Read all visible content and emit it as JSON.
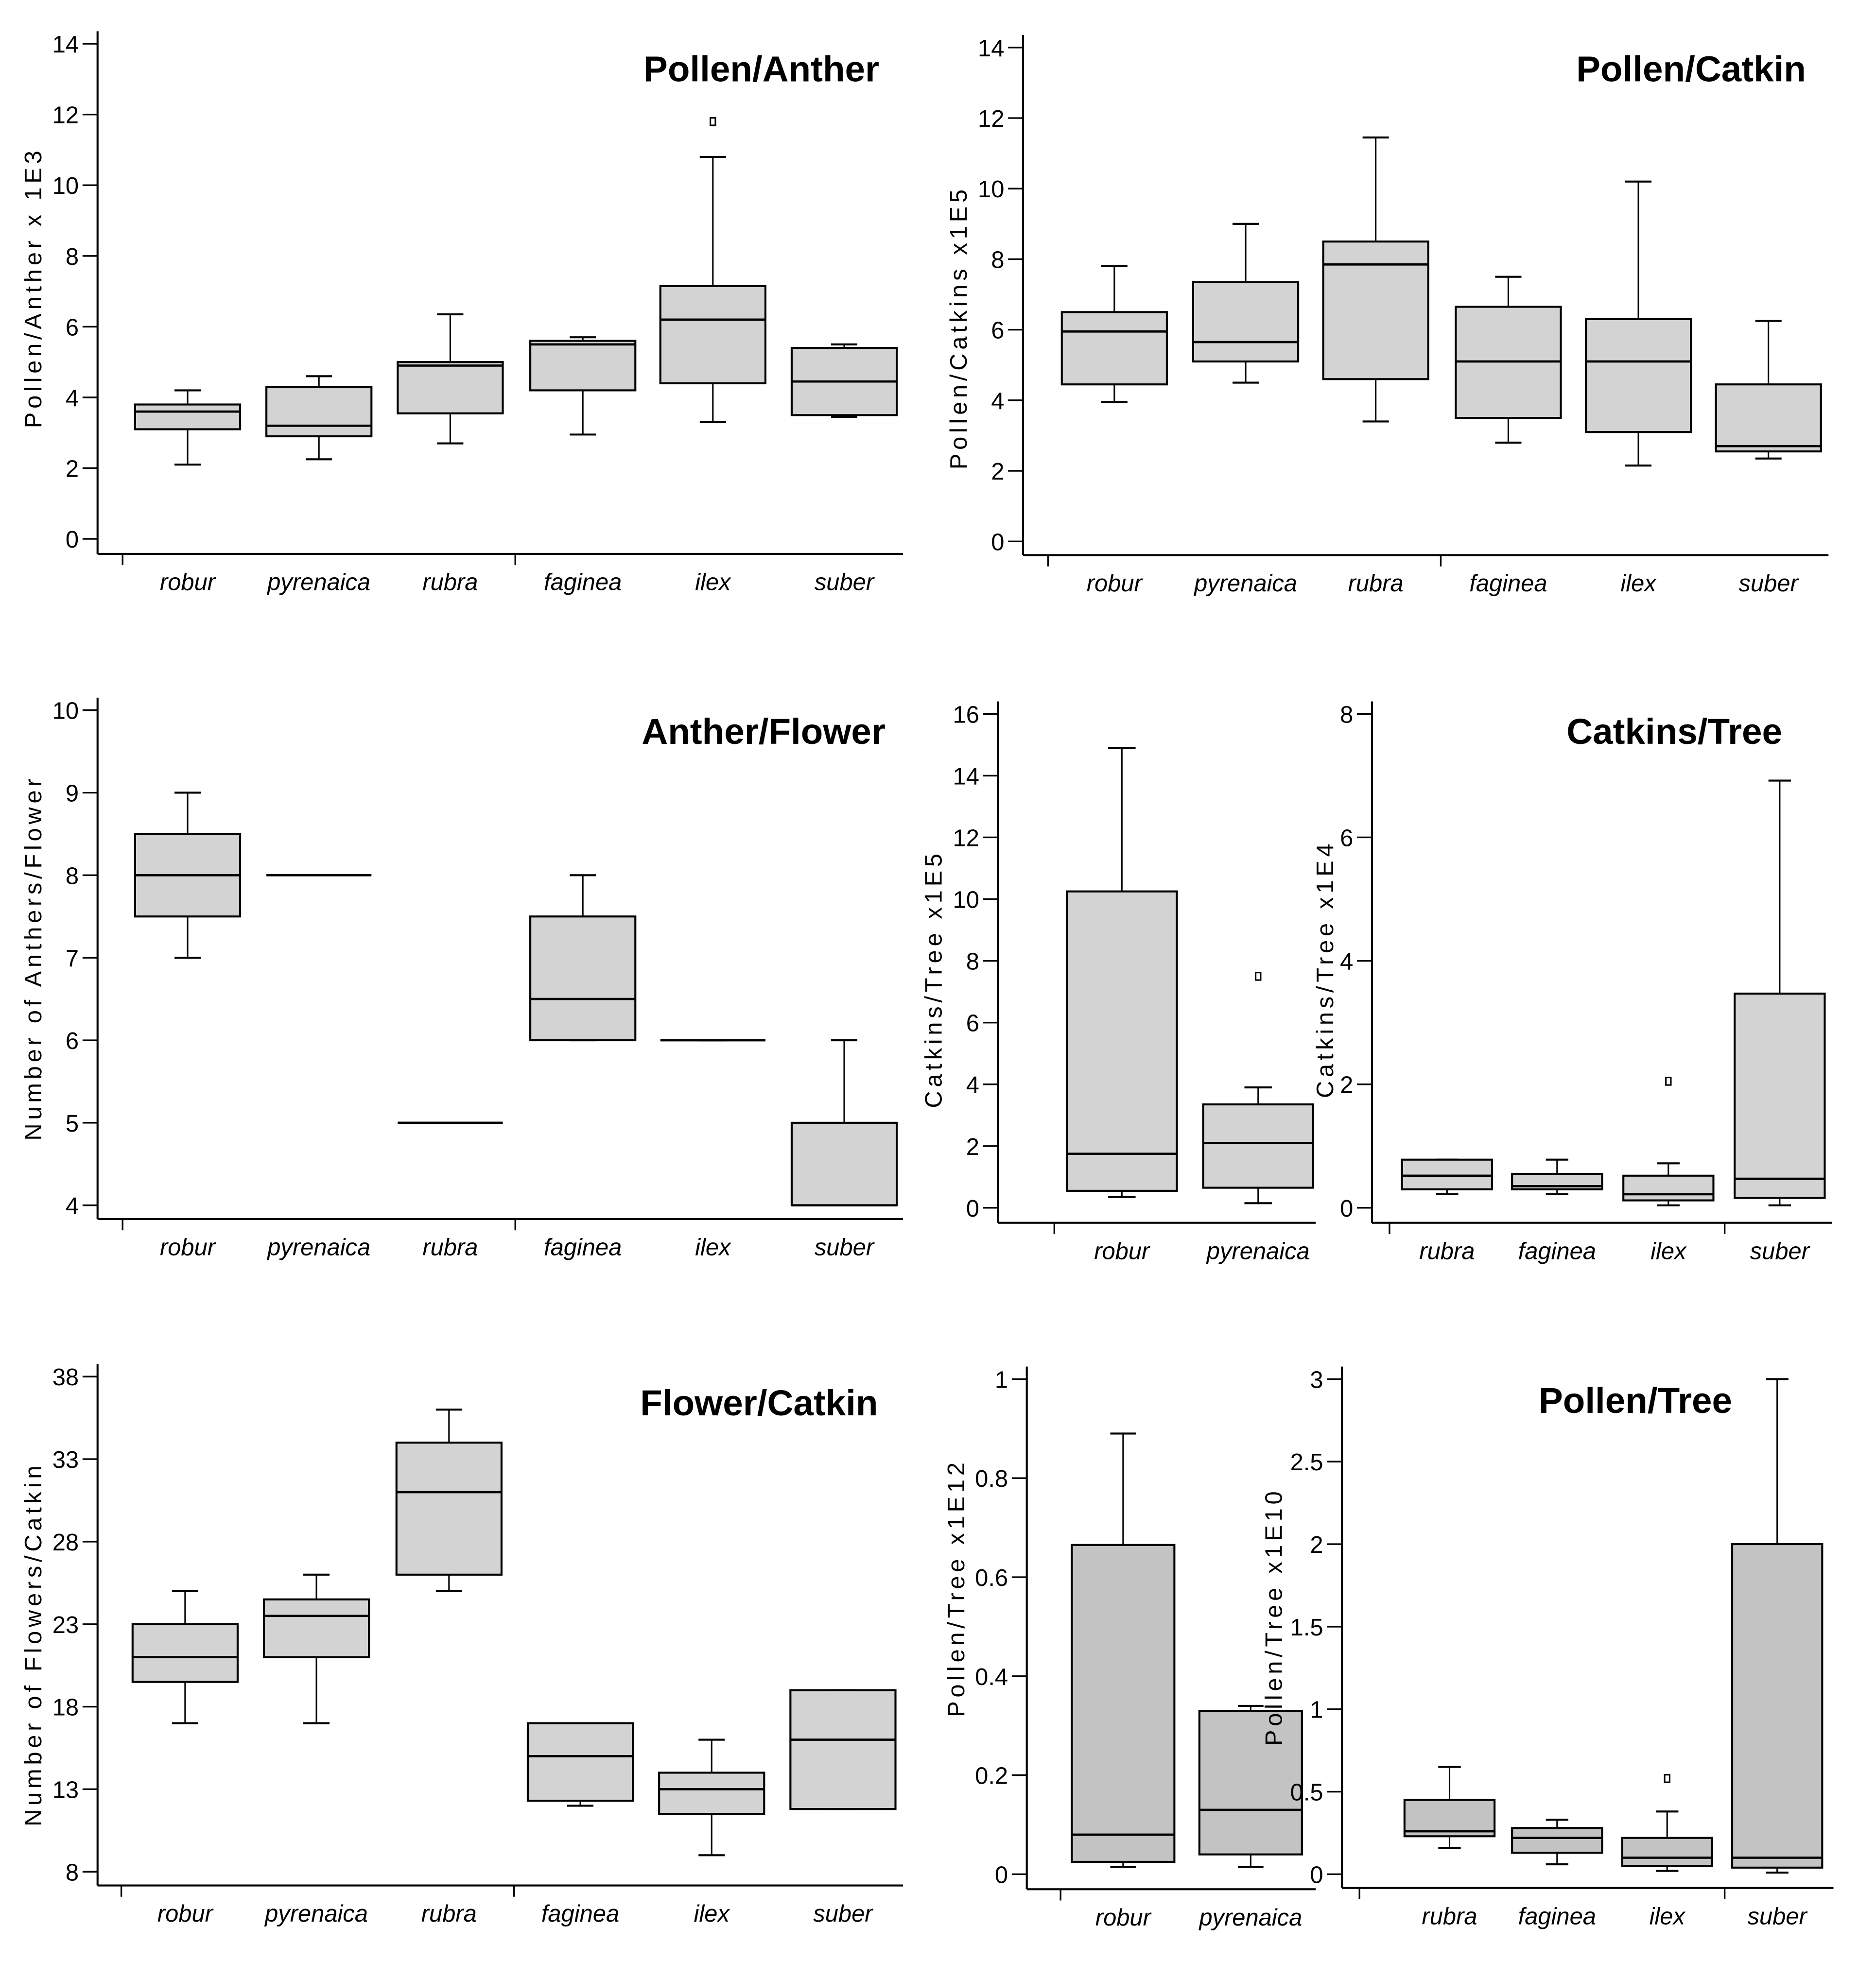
{
  "chart_data": [
    {
      "type": "box",
      "title": "Pollen/Anther",
      "ylabel": "Pollen/Anther x 1E3",
      "ylim": [
        0,
        14
      ],
      "yticks": [
        0,
        2,
        4,
        6,
        8,
        10,
        12,
        14
      ],
      "categories": [
        "robur",
        "pyrenaica",
        "rubra",
        "faginea",
        "ilex",
        "suber"
      ],
      "boxes": [
        {
          "min": 2.1,
          "q1": 3.1,
          "median": 3.6,
          "q3": 3.8,
          "max": 4.2,
          "outliers": []
        },
        {
          "min": 2.25,
          "q1": 2.9,
          "median": 3.2,
          "q3": 4.3,
          "max": 4.6,
          "outliers": []
        },
        {
          "min": 2.7,
          "q1": 3.55,
          "median": 4.9,
          "q3": 5.0,
          "max": 6.35,
          "outliers": []
        },
        {
          "min": 2.95,
          "q1": 4.2,
          "median": 5.5,
          "q3": 5.6,
          "max": 5.7,
          "outliers": []
        },
        {
          "min": 3.3,
          "q1": 4.4,
          "median": 6.2,
          "q3": 7.15,
          "max": 10.8,
          "outliers": [
            11.8
          ]
        },
        {
          "min": 3.45,
          "q1": 3.5,
          "median": 4.45,
          "q3": 5.4,
          "max": 5.5,
          "outliers": []
        }
      ],
      "fill": "#d3d3d3"
    },
    {
      "type": "box",
      "title": "Pollen/Catkin",
      "ylabel": "Pollen/Catkins x1E5",
      "ylim": [
        0,
        14
      ],
      "yticks": [
        0,
        2,
        4,
        6,
        8,
        10,
        12,
        14
      ],
      "categories": [
        "robur",
        "pyrenaica",
        "rubra",
        "faginea",
        "ilex",
        "suber"
      ],
      "boxes": [
        {
          "min": 3.95,
          "q1": 4.45,
          "median": 5.95,
          "q3": 6.5,
          "max": 7.8,
          "outliers": []
        },
        {
          "min": 4.5,
          "q1": 5.1,
          "median": 5.65,
          "q3": 7.35,
          "max": 9.0,
          "outliers": []
        },
        {
          "min": 3.4,
          "q1": 4.6,
          "median": 7.85,
          "q3": 8.5,
          "max": 11.45,
          "outliers": []
        },
        {
          "min": 2.8,
          "q1": 3.5,
          "median": 5.1,
          "q3": 6.65,
          "max": 7.5,
          "outliers": []
        },
        {
          "min": 2.15,
          "q1": 3.1,
          "median": 5.1,
          "q3": 6.3,
          "max": 10.2,
          "outliers": []
        },
        {
          "min": 2.35,
          "q1": 2.55,
          "median": 2.7,
          "q3": 4.45,
          "max": 6.25,
          "outliers": []
        }
      ],
      "fill": "#d3d3d3"
    },
    {
      "type": "box",
      "title": "Anther/Flower",
      "ylabel": "Number of Anthers/Flower",
      "ylim": [
        4,
        10
      ],
      "yticks": [
        4,
        5,
        6,
        7,
        8,
        9,
        10
      ],
      "categories": [
        "robur",
        "pyrenaica",
        "rubra",
        "faginea",
        "ilex",
        "suber"
      ],
      "boxes": [
        {
          "min": 7,
          "q1": 7.5,
          "median": 8,
          "q3": 8.5,
          "max": 9,
          "outliers": []
        },
        {
          "min": 8,
          "q1": 8,
          "median": 8,
          "q3": 8,
          "max": 8,
          "outliers": []
        },
        {
          "min": 5,
          "q1": 5,
          "median": 5,
          "q3": 5,
          "max": 5,
          "outliers": []
        },
        {
          "min": 6,
          "q1": 6,
          "median": 6.5,
          "q3": 7.5,
          "max": 8,
          "outliers": []
        },
        {
          "min": 6,
          "q1": 6,
          "median": 6,
          "q3": 6,
          "max": 6,
          "outliers": []
        },
        {
          "min": 4,
          "q1": 4,
          "median": 4,
          "q3": 5,
          "max": 6,
          "outliers": []
        }
      ],
      "fill": "#d3d3d3"
    },
    {
      "type": "box",
      "title": "",
      "ylabel": "Catkins/Tree x1E5",
      "ylim": [
        0,
        16
      ],
      "yticks": [
        0,
        2,
        4,
        6,
        8,
        10,
        12,
        14,
        16
      ],
      "categories": [
        "robur",
        "pyrenaica"
      ],
      "boxes": [
        {
          "min": 0.35,
          "q1": 0.55,
          "median": 1.75,
          "q3": 10.25,
          "max": 14.9,
          "outliers": []
        },
        {
          "min": 0.15,
          "q1": 0.65,
          "median": 2.1,
          "q3": 3.35,
          "max": 3.9,
          "outliers": [
            7.5
          ]
        }
      ],
      "fill": "#d3d3d3"
    },
    {
      "type": "box",
      "title": "Catkins/Tree",
      "ylabel": "Catkins/Tree x1E4",
      "ylim": [
        0,
        8
      ],
      "yticks": [
        0,
        2,
        4,
        6,
        8
      ],
      "categories": [
        "rubra",
        "faginea",
        "ilex",
        "suber"
      ],
      "boxes": [
        {
          "min": 0.22,
          "q1": 0.3,
          "median": 0.52,
          "q3": 0.78,
          "max": 0.78,
          "outliers": []
        },
        {
          "min": 0.22,
          "q1": 0.3,
          "median": 0.35,
          "q3": 0.55,
          "max": 0.78,
          "outliers": []
        },
        {
          "min": 0.04,
          "q1": 0.12,
          "median": 0.22,
          "q3": 0.52,
          "max": 0.72,
          "outliers": [
            2.05
          ]
        },
        {
          "min": 0.04,
          "q1": 0.16,
          "median": 0.47,
          "q3": 3.47,
          "max": 6.92,
          "outliers": []
        }
      ],
      "fill": "#d3d3d3"
    },
    {
      "type": "box",
      "title": "Flower/Catkin",
      "ylabel": "Number of Flowers/Catkin",
      "ylim": [
        8,
        38
      ],
      "yticks": [
        8,
        13,
        18,
        23,
        28,
        33,
        38
      ],
      "categories": [
        "robur",
        "pyrenaica",
        "rubra",
        "faginea",
        "ilex",
        "suber"
      ],
      "boxes": [
        {
          "min": 17,
          "q1": 19.5,
          "median": 21,
          "q3": 23,
          "max": 25,
          "outliers": []
        },
        {
          "min": 17,
          "q1": 21,
          "median": 23.5,
          "q3": 24.5,
          "max": 26,
          "outliers": []
        },
        {
          "min": 25,
          "q1": 26,
          "median": 31,
          "q3": 34,
          "max": 36,
          "outliers": []
        },
        {
          "min": 12,
          "q1": 12.3,
          "median": 15,
          "q3": 17,
          "max": 17,
          "outliers": []
        },
        {
          "min": 9,
          "q1": 11.5,
          "median": 13,
          "q3": 14,
          "max": 16,
          "outliers": []
        },
        {
          "min": 11.8,
          "q1": 11.8,
          "median": 16,
          "q3": 19,
          "max": 19,
          "outliers": []
        }
      ],
      "fill": "#d3d3d3"
    },
    {
      "type": "box",
      "title": "",
      "ylabel": "Pollen/Tree x1E12",
      "ylim": [
        0,
        1
      ],
      "yticks": [
        "0",
        "0.2",
        "0.4",
        "0.6",
        "0.8",
        "1"
      ],
      "categories": [
        "robur",
        "pyrenaica"
      ],
      "boxes": [
        {
          "min": 0.015,
          "q1": 0.025,
          "median": 0.08,
          "q3": 0.665,
          "max": 0.89,
          "outliers": []
        },
        {
          "min": 0.015,
          "q1": 0.04,
          "median": 0.13,
          "q3": 0.33,
          "max": 0.34,
          "outliers": []
        }
      ],
      "fill": "#c3c3c3"
    },
    {
      "type": "box",
      "title": "Pollen/Tree",
      "ylabel": "Pollen/Tree x1E10",
      "ylim": [
        0,
        3
      ],
      "yticks": [
        "0",
        "0.5",
        "1",
        "1.5",
        "2",
        "2.5",
        "3"
      ],
      "categories": [
        "rubra",
        "faginea",
        "ilex",
        "suber"
      ],
      "boxes": [
        {
          "min": 0.16,
          "q1": 0.23,
          "median": 0.26,
          "q3": 0.45,
          "max": 0.65,
          "outliers": []
        },
        {
          "min": 0.06,
          "q1": 0.13,
          "median": 0.22,
          "q3": 0.28,
          "max": 0.33,
          "outliers": []
        },
        {
          "min": 0.02,
          "q1": 0.05,
          "median": 0.1,
          "q3": 0.22,
          "max": 0.38,
          "outliers": [
            0.58
          ]
        },
        {
          "min": 0.01,
          "q1": 0.04,
          "median": 0.1,
          "q3": 2.0,
          "max": 3.0,
          "outliers": []
        }
      ],
      "fill": "#c3c3c3"
    }
  ]
}
